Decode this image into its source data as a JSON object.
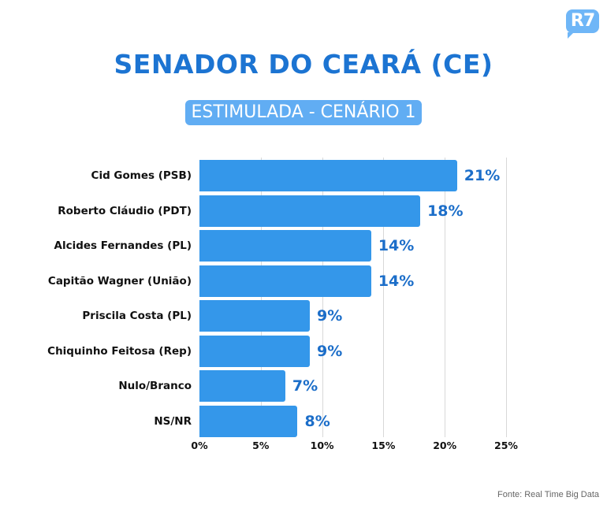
{
  "brand": {
    "logo_text": "R7",
    "color": "#6fb6f7"
  },
  "header": {
    "title": "SENADOR DO CEARÁ (CE)",
    "subtitle": "ESTIMULADA - CENÁRIO 1"
  },
  "axis": {
    "ticks": [
      "0%",
      "5%",
      "10%",
      "15%",
      "20%",
      "25%"
    ]
  },
  "rows": [
    {
      "label": "Cid Gomes (PSB)",
      "value": 21,
      "value_label": "21%"
    },
    {
      "label": "Roberto Cláudio (PDT)",
      "value": 18,
      "value_label": "18%"
    },
    {
      "label": "Alcides Fernandes (PL)",
      "value": 14,
      "value_label": "14%"
    },
    {
      "label": "Capitão Wagner (União)",
      "value": 14,
      "value_label": "14%"
    },
    {
      "label": "Priscila Costa (PL)",
      "value": 9,
      "value_label": "9%"
    },
    {
      "label": "Chiquinho Feitosa (Rep)",
      "value": 9,
      "value_label": "9%"
    },
    {
      "label": "Nulo/Branco",
      "value": 7,
      "value_label": "7%"
    },
    {
      "label": "NS/NR",
      "value": 8,
      "value_label": "8%"
    }
  ],
  "footer": {
    "source": "Fonte: Real Time Big Data"
  },
  "colors": {
    "bar": "#3497ea",
    "title": "#1c74d2",
    "value_label": "#1c6ec9",
    "subtitle_bg": "#61adf3"
  },
  "chart_data": {
    "type": "bar",
    "orientation": "horizontal",
    "title": "SENADOR DO CEARÁ (CE)",
    "subtitle": "ESTIMULADA - CENÁRIO 1",
    "categories": [
      "Cid Gomes (PSB)",
      "Roberto Cláudio (PDT)",
      "Alcides Fernandes (PL)",
      "Capitão Wagner (União)",
      "Priscila Costa (PL)",
      "Chiquinho Feitosa (Rep)",
      "Nulo/Branco",
      "NS/NR"
    ],
    "values": [
      21,
      18,
      14,
      14,
      9,
      9,
      7,
      8
    ],
    "xlabel": "",
    "ylabel": "",
    "xlim": [
      0,
      25
    ],
    "xticks": [
      "0%",
      "5%",
      "10%",
      "15%",
      "20%",
      "25%"
    ],
    "grid": true,
    "data_labels": true,
    "source": "Fonte: Real Time Big Data"
  }
}
